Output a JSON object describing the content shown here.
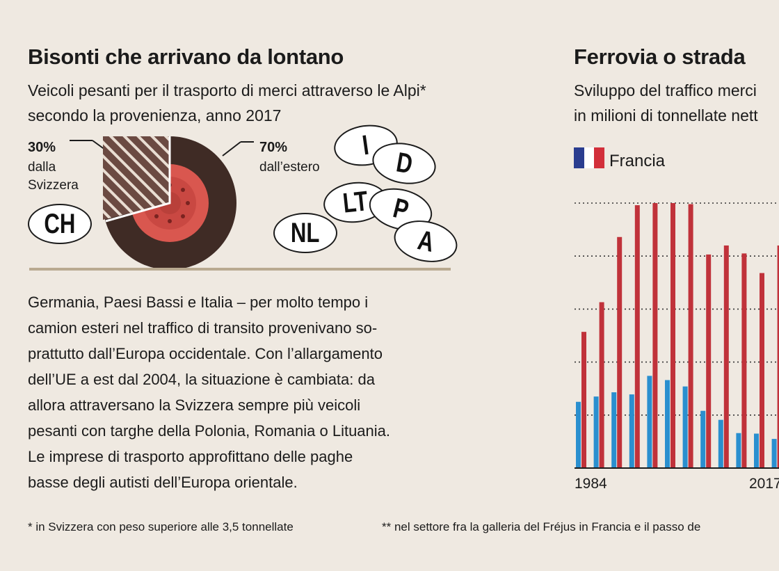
{
  "left": {
    "title": "Bisonti che arrivano da lontano",
    "subtitle_line1": "Veicoli pesanti per il trasporto di merci attraverso le Alpi*",
    "subtitle_line2": "secondo la provenienza, anno 2017",
    "share_swiss": {
      "pct": "30%",
      "label1": "dalla",
      "label2": "Svizzera",
      "value": 30
    },
    "share_foreign": {
      "pct": "70%",
      "label": "dall’estero",
      "value": 70
    },
    "plates": [
      "CH",
      "I",
      "D",
      "LT",
      "P",
      "NL",
      "A"
    ],
    "paragraph": [
      "Germania, Paesi Bassi e Italia – per molto tempo i",
      "camion esteri nel traffico di transito provenivano so-",
      "prattutto dall’Europa occidentale. Con l’allargamento",
      "dell’UE a est dal 2004, la situazione è cambiata: da",
      "allora attraversano la Svizzera sempre più veicoli",
      "pesanti con targhe della Polonia, Romania o Lituania.",
      "Le imprese di trasporto approfittano delle paghe",
      "basse degli autisti dell’Europa orientale."
    ],
    "footnote": "* in Svizzera con peso superiore alle 3,5 tonnellate"
  },
  "right": {
    "title": "Ferrovia o strada",
    "subtitle_line1": "Sviluppo del traffico merci",
    "subtitle_line2": "in milioni di tonnellate nett",
    "legend_country": "Francia",
    "footnote": "** nel settore fra la galleria del Fréjus in Francia e il passo de"
  },
  "colors": {
    "rail": "#2a8fcf",
    "road": "#c0323a",
    "background": "#efe9e1"
  },
  "chart_data": {
    "type": "bar",
    "x_tick_labels": [
      "1984",
      "2017"
    ],
    "grid": "dotted horizontal",
    "ylim": [
      0,
      5
    ],
    "series": [
      {
        "color": "#2a8fcf",
        "values": [
          1.25,
          1.35,
          1.43,
          1.39,
          1.74,
          1.66,
          1.54,
          1.08,
          0.91,
          0.66,
          0.65,
          0.55
        ]
      },
      {
        "color": "#c0323a",
        "values": [
          2.57,
          3.13,
          4.36,
          4.96,
          5.0,
          5.0,
          4.98,
          4.03,
          4.2,
          4.05,
          3.68,
          4.2
        ]
      }
    ]
  }
}
